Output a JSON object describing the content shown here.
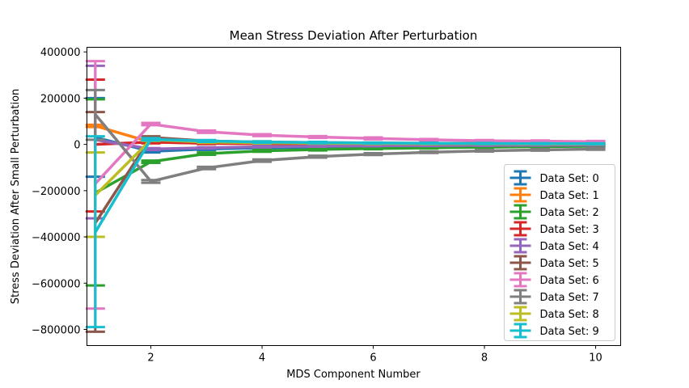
{
  "chart_data": {
    "type": "line",
    "title": "Mean Stress Deviation After Perturbation",
    "xlabel": "MDS Component Number",
    "ylabel": "Stress Deviation After Small Perturbation",
    "xlim": [
      0.85,
      10.45
    ],
    "ylim": [
      -870000,
      420000
    ],
    "xticks": [
      2,
      4,
      6,
      8,
      10
    ],
    "yticks": [
      -800000,
      -600000,
      -400000,
      -200000,
      0,
      200000,
      400000
    ],
    "ytick_labels": [
      "−800000",
      "−600000",
      "−400000",
      "−200000",
      "0",
      "200000",
      "400000"
    ],
    "grid": false,
    "legend": "lower-right",
    "x": [
      1,
      2,
      3,
      4,
      5,
      6,
      7,
      8,
      9,
      10
    ],
    "series": [
      {
        "name": "Data Set: 0",
        "color": "#1f77b4",
        "values": [
          30000,
          -30000,
          -20000,
          -15000,
          -12000,
          -10000,
          -9000,
          -8000,
          -7000,
          -6000
        ],
        "err_low": [
          -140000,
          -35000,
          -24000,
          -18000,
          -15000,
          -13000,
          -11000,
          -10000,
          -9000,
          -8000
        ],
        "err_high": [
          200000,
          -25000,
          -16000,
          -12000,
          -9000,
          -7000,
          -7000,
          -6000,
          -5000,
          -4000
        ]
      },
      {
        "name": "Data Set: 1",
        "color": "#ff7f0e",
        "values": [
          80000,
          10000,
          5000,
          3000,
          2000,
          2000,
          1500,
          1000,
          1000,
          1000
        ],
        "err_low": [
          75000,
          5000,
          2000,
          1000,
          0,
          0,
          0,
          0,
          0,
          0
        ],
        "err_high": [
          85000,
          15000,
          8000,
          5000,
          4000,
          4000,
          3000,
          2000,
          2000,
          2000
        ]
      },
      {
        "name": "Data Set: 2",
        "color": "#2ca02c",
        "values": [
          -210000,
          -75000,
          -40000,
          -28000,
          -22000,
          -18000,
          -15000,
          -12000,
          -10000,
          -8000
        ],
        "err_low": [
          -610000,
          -80000,
          -45000,
          -32000,
          -26000,
          -21000,
          -18000,
          -15000,
          -13000,
          -11000
        ],
        "err_high": [
          195000,
          -70000,
          -35000,
          -24000,
          -18000,
          -15000,
          -12000,
          -9000,
          -7000,
          -5000
        ]
      },
      {
        "name": "Data Set: 3",
        "color": "#d62728",
        "values": [
          0,
          10000,
          5000,
          3000,
          2000,
          1500,
          1000,
          1000,
          500,
          500
        ],
        "err_low": [
          -290000,
          5000,
          2000,
          1000,
          0,
          0,
          0,
          0,
          0,
          0
        ],
        "err_high": [
          280000,
          15000,
          8000,
          5000,
          4000,
          3000,
          2000,
          2000,
          1000,
          1000
        ]
      },
      {
        "name": "Data Set: 4",
        "color": "#9467bd",
        "values": [
          20000,
          -20000,
          -15000,
          -10000,
          -8000,
          -6000,
          -5000,
          -4000,
          -3500,
          -3000
        ],
        "err_low": [
          -320000,
          -24000,
          -18000,
          -13000,
          -10000,
          -8000,
          -7000,
          -6000,
          -5000,
          -4500
        ],
        "err_high": [
          340000,
          -16000,
          -12000,
          -7000,
          -6000,
          -4000,
          -3000,
          -2000,
          -2000,
          -1500
        ]
      },
      {
        "name": "Data Set: 5",
        "color": "#8c564b",
        "values": [
          -340000,
          30000,
          15000,
          10000,
          8000,
          6000,
          5000,
          4000,
          3500,
          3000
        ],
        "err_low": [
          -810000,
          25000,
          12000,
          7000,
          5000,
          4000,
          3000,
          2000,
          2000,
          1500
        ],
        "err_high": [
          140000,
          35000,
          18000,
          13000,
          11000,
          8000,
          7000,
          6000,
          5000,
          4500
        ]
      },
      {
        "name": "Data Set: 6",
        "color": "#e377c2",
        "values": [
          -170000,
          88000,
          55000,
          40000,
          32000,
          26000,
          20000,
          16000,
          14000,
          12000
        ],
        "err_low": [
          -710000,
          83000,
          50000,
          36000,
          28000,
          22000,
          17000,
          13000,
          11000,
          9000
        ],
        "err_high": [
          360000,
          93000,
          60000,
          44000,
          36000,
          30000,
          23000,
          19000,
          17000,
          15000
        ]
      },
      {
        "name": "Data Set: 7",
        "color": "#7f7f7f",
        "values": [
          130000,
          -160000,
          -102000,
          -70000,
          -53000,
          -42000,
          -34000,
          -28000,
          -24000,
          -20000
        ],
        "err_low": [
          20000,
          -166000,
          -107000,
          -75000,
          -57000,
          -46000,
          -37000,
          -31000,
          -27000,
          -23000
        ],
        "err_high": [
          235000,
          -154000,
          -97000,
          -65000,
          -49000,
          -38000,
          -31000,
          -25000,
          -21000,
          -17000
        ]
      },
      {
        "name": "Data Set: 8",
        "color": "#bcbd22",
        "values": [
          -220000,
          20000,
          10000,
          7000,
          5000,
          4000,
          3000,
          2500,
          2000,
          2000
        ],
        "err_low": [
          -400000,
          15000,
          7000,
          4000,
          3000,
          2000,
          1000,
          1000,
          0,
          0
        ],
        "err_high": [
          -35000,
          25000,
          13000,
          10000,
          7000,
          6000,
          5000,
          4000,
          4000,
          4000
        ]
      },
      {
        "name": "Data Set: 9",
        "color": "#17becf",
        "values": [
          -380000,
          22000,
          15000,
          10000,
          8000,
          6000,
          5000,
          4000,
          3500,
          3000
        ],
        "err_low": [
          -790000,
          17000,
          11000,
          7000,
          5000,
          4000,
          3000,
          2000,
          1500,
          1000
        ],
        "err_high": [
          35000,
          27000,
          19000,
          13000,
          11000,
          8000,
          7000,
          6000,
          5500,
          5000
        ]
      }
    ]
  }
}
